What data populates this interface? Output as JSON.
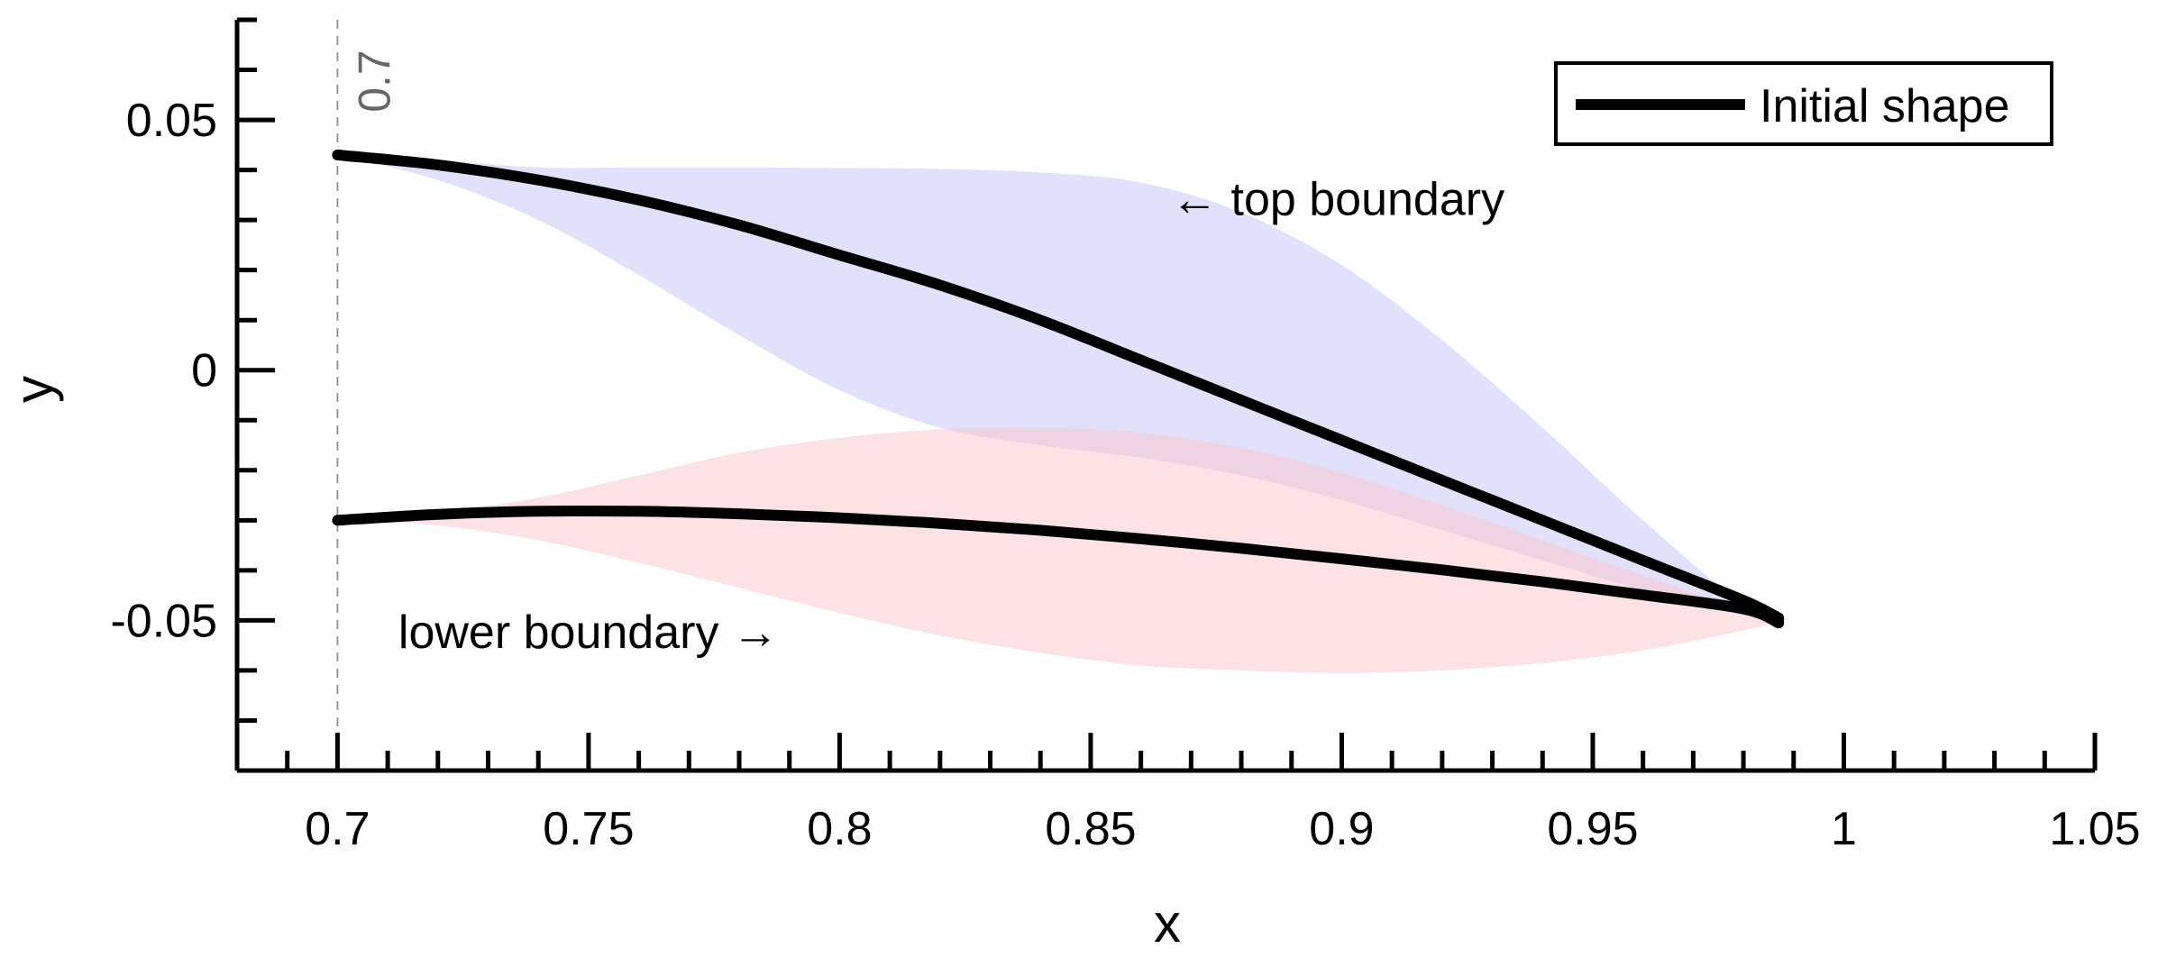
{
  "chart_data": {
    "type": "line",
    "title": "",
    "xlabel": "x",
    "ylabel": "y",
    "xlim": [
      0.68,
      1.05
    ],
    "ylim": [
      -0.08,
      0.07
    ],
    "grid": false,
    "x_ticks": [
      0.7,
      0.75,
      0.8,
      0.85,
      0.9,
      0.95,
      1,
      1.05
    ],
    "x_tick_labels": [
      "0.7",
      "0.75",
      "0.8",
      "0.85",
      "0.9",
      "0.95",
      "1",
      "1.05"
    ],
    "x_minor_step": 0.01,
    "y_ticks": [
      -0.05,
      0,
      0.05
    ],
    "y_tick_labels": [
      "-0.05",
      "0",
      "0.05"
    ],
    "y_minor_step": 0.01,
    "reference_line": {
      "x": 0.7,
      "label": "0.7",
      "color": "#999999"
    },
    "legend": {
      "position": "top-right",
      "entries": [
        "Initial shape"
      ]
    },
    "series": [
      {
        "name": "Initial shape (upper)",
        "legend": true,
        "color": "#000000",
        "x": [
          0.7,
          0.72,
          0.74,
          0.76,
          0.78,
          0.8,
          0.82,
          0.84,
          0.86,
          0.88,
          0.9,
          0.92,
          0.94,
          0.96,
          0.98,
          0.987
        ],
        "y": [
          0.043,
          0.041,
          0.038,
          0.034,
          0.029,
          0.023,
          0.017,
          0.01,
          0.002,
          -0.006,
          -0.014,
          -0.022,
          -0.03,
          -0.038,
          -0.046,
          -0.0495
        ]
      },
      {
        "name": "Initial shape (lower)",
        "legend": false,
        "color": "#000000",
        "x": [
          0.7,
          0.72,
          0.74,
          0.76,
          0.78,
          0.8,
          0.82,
          0.84,
          0.86,
          0.88,
          0.9,
          0.92,
          0.94,
          0.96,
          0.98,
          0.987
        ],
        "y": [
          -0.03,
          -0.0288,
          -0.0282,
          -0.0282,
          -0.0287,
          -0.0295,
          -0.0306,
          -0.032,
          -0.0337,
          -0.0356,
          -0.0377,
          -0.0399,
          -0.0423,
          -0.0449,
          -0.0477,
          -0.0505
        ]
      }
    ],
    "bands": [
      {
        "name": "top boundary",
        "color": "#c9c9f8",
        "x": [
          0.7,
          0.72,
          0.74,
          0.76,
          0.78,
          0.8,
          0.82,
          0.84,
          0.86,
          0.88,
          0.9,
          0.92,
          0.94,
          0.96,
          0.98,
          0.987
        ],
        "upper": [
          0.043,
          0.042,
          0.0405,
          0.0405,
          0.0405,
          0.0404,
          0.0402,
          0.0395,
          0.0375,
          0.0315,
          0.021,
          0.006,
          -0.0115,
          -0.03,
          -0.047,
          -0.05
        ],
        "lower": [
          0.043,
          0.038,
          0.03,
          0.019,
          0.007,
          -0.004,
          -0.0115,
          -0.015,
          -0.0175,
          -0.021,
          -0.026,
          -0.032,
          -0.038,
          -0.044,
          -0.049,
          -0.05
        ]
      },
      {
        "name": "lower boundary",
        "color": "#f9cbd0",
        "x": [
          0.7,
          0.72,
          0.74,
          0.76,
          0.78,
          0.8,
          0.82,
          0.84,
          0.86,
          0.88,
          0.9,
          0.92,
          0.94,
          0.96,
          0.98,
          0.987
        ],
        "upper": [
          -0.03,
          -0.0285,
          -0.0255,
          -0.021,
          -0.0165,
          -0.0135,
          -0.0118,
          -0.0115,
          -0.0125,
          -0.0155,
          -0.0205,
          -0.027,
          -0.034,
          -0.041,
          -0.048,
          -0.05
        ],
        "lower": [
          -0.03,
          -0.031,
          -0.034,
          -0.0385,
          -0.0435,
          -0.0485,
          -0.053,
          -0.0565,
          -0.059,
          -0.06,
          -0.0605,
          -0.06,
          -0.0585,
          -0.056,
          -0.052,
          -0.05
        ]
      }
    ],
    "annotations": [
      {
        "text": "← top boundary",
        "x": 0.866,
        "y": 0.031,
        "anchor": "start"
      },
      {
        "text": "lower boundary →",
        "x": 0.75,
        "y": -0.0555,
        "anchor": "middle"
      }
    ]
  }
}
